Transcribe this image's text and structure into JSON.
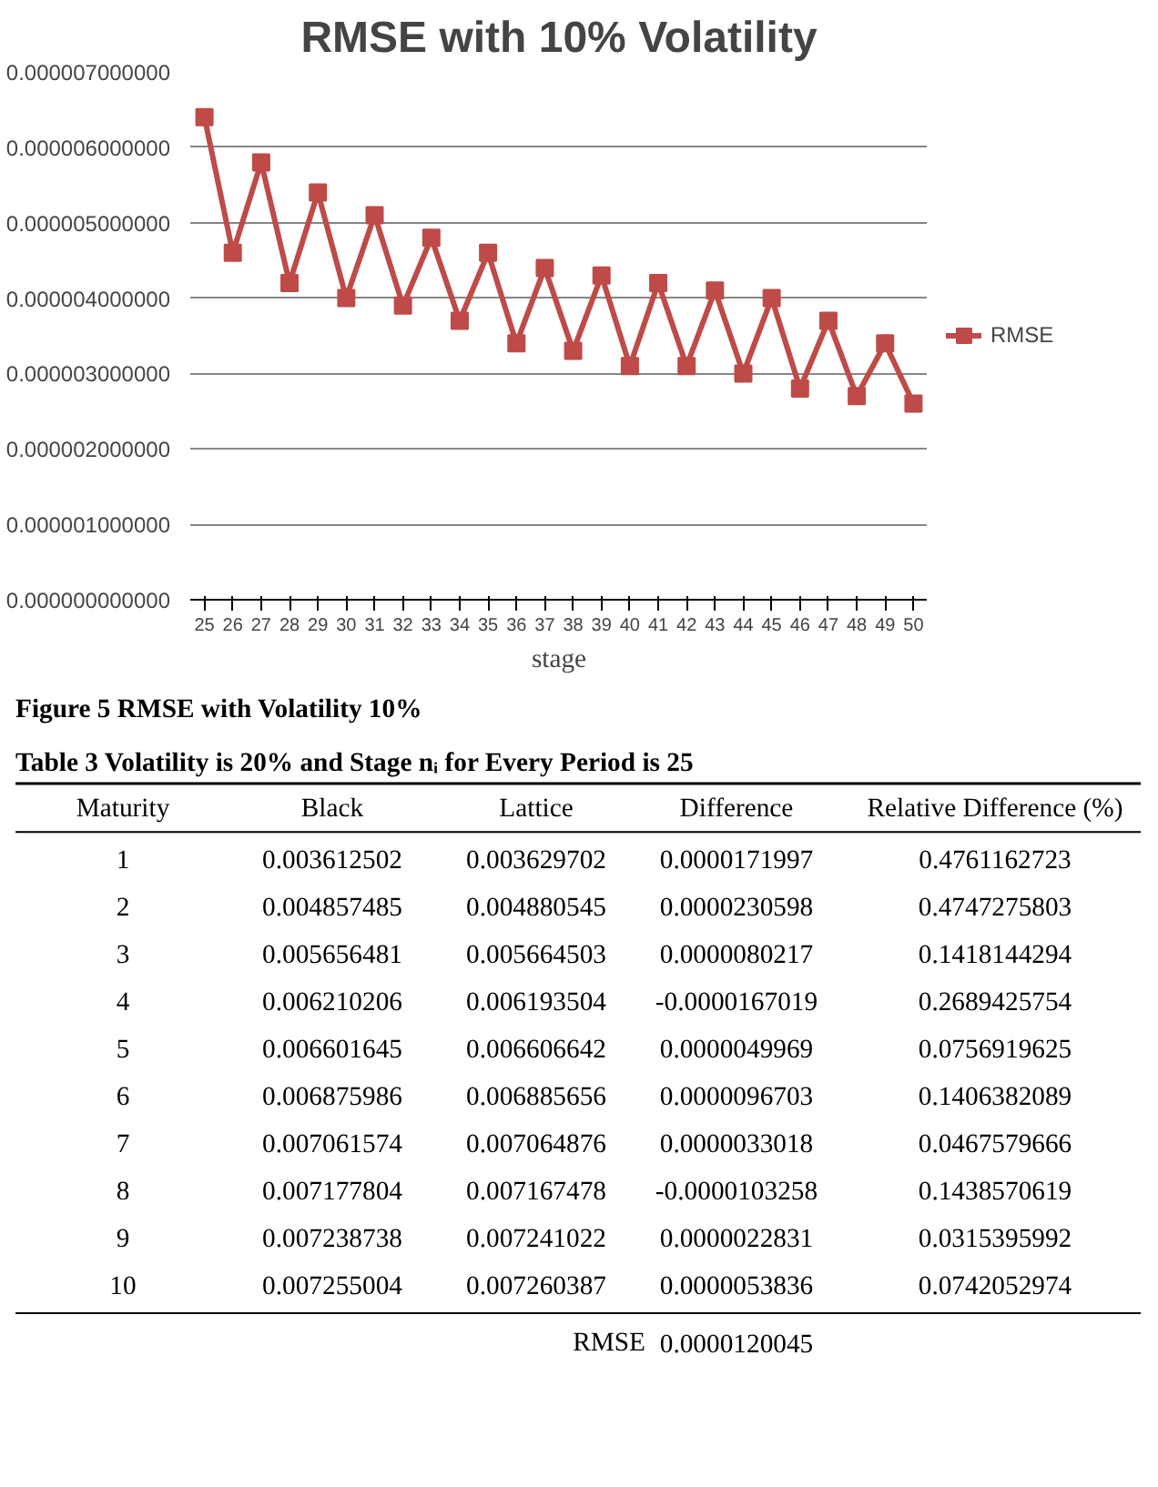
{
  "chart_data": {
    "type": "line",
    "title": "RMSE with 10% Volatility",
    "xlabel": "stage",
    "categories": [
      "25",
      "26",
      "27",
      "28",
      "29",
      "30",
      "31",
      "32",
      "33",
      "34",
      "35",
      "36",
      "37",
      "38",
      "39",
      "40",
      "41",
      "42",
      "43",
      "44",
      "45",
      "46",
      "47",
      "48",
      "49",
      "50"
    ],
    "series": [
      {
        "name": "RMSE",
        "color": "#be4b48",
        "values": [
          6.4e-06,
          4.6e-06,
          5.8e-06,
          4.2e-06,
          5.4e-06,
          4e-06,
          5.1e-06,
          3.9e-06,
          4.8e-06,
          3.7e-06,
          4.6e-06,
          3.4e-06,
          4.4e-06,
          3.3e-06,
          4.3e-06,
          3.1e-06,
          4.2e-06,
          3.1e-06,
          4.1e-06,
          3e-06,
          4e-06,
          2.8e-06,
          3.7e-06,
          2.7e-06,
          3.4e-06,
          2.6e-06
        ]
      }
    ],
    "ylim": [
      0,
      7e-06
    ],
    "yticks": [
      {
        "value": 0,
        "label": "0.000000000000"
      },
      {
        "value": 1e-06,
        "label": "0.000001000000"
      },
      {
        "value": 2e-06,
        "label": "0.000002000000"
      },
      {
        "value": 3e-06,
        "label": "0.000003000000"
      },
      {
        "value": 4e-06,
        "label": "0.000004000000"
      },
      {
        "value": 5e-06,
        "label": "0.000005000000"
      },
      {
        "value": 6e-06,
        "label": "0.000006000000"
      },
      {
        "value": 7e-06,
        "label": "0.000007000000"
      }
    ],
    "grid": "y",
    "legend": "right",
    "marker": "square",
    "line_style": "solid",
    "annotations": [
      "Figure 5 RMSE with Volatility 10%",
      "Table 3 Volatility is 20% and Stage nᵢ for Every Period is 25",
      "Maturity",
      "Black",
      "Lattice",
      "Difference",
      "Relative Difference (%)",
      "1",
      "0.003612502",
      "0.003629702",
      "0.0000171997",
      "0.4761162723",
      "2",
      "0.004857485",
      "0.004880545",
      "0.0000230598",
      "0.4747275803",
      "3",
      "0.005656481",
      "0.005664503",
      "0.0000080217",
      "0.1418144294",
      "4",
      "0.006210206",
      "0.006193504",
      "-0.0000167019",
      "0.2689425754",
      "5",
      "0.006601645",
      "0.006606642",
      "0.0000049969",
      "0.0756919625",
      "6",
      "0.006875986",
      "0.006885656",
      "0.0000096703",
      "0.1406382089",
      "7",
      "0.007061574",
      "0.007064876",
      "0.0000033018",
      "0.0467579666",
      "8",
      "0.007177804",
      "0.007167478",
      "-0.0000103258",
      "0.1438570619",
      "9",
      "0.007238738",
      "0.007241022",
      "0.0000022831",
      "0.0315395992",
      "10",
      "0.007255004",
      "0.007260387",
      "0.0000053836",
      "0.0742052974",
      "RMSE",
      "0.0000120045"
    ]
  }
}
